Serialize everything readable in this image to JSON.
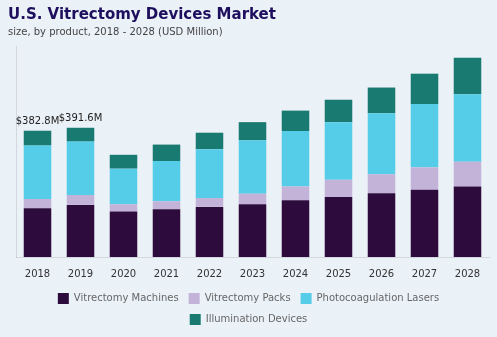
{
  "chart_data": {
    "type": "bar",
    "stacked": true,
    "title": "U.S. Vitrectomy Devices Market",
    "subtitle": "size, by product, 2018 - 2028 (USD Million)",
    "categories": [
      "2018",
      "2019",
      "2020",
      "2021",
      "2022",
      "2023",
      "2024",
      "2025",
      "2026",
      "2027",
      "2028"
    ],
    "series": [
      {
        "name": "Vitrectomy Machines",
        "color": "#2e0b3d",
        "values": [
          148,
          158,
          138,
          145,
          152,
          160,
          172,
          182,
          193,
          204,
          214
        ]
      },
      {
        "name": "Vitrectomy Packs",
        "color": "#c3b3d8",
        "values": [
          28,
          30,
          22,
          24,
          27,
          32,
          42,
          52,
          58,
          68,
          75
        ]
      },
      {
        "name": "Photocoagulation Lasers",
        "color": "#55cce8",
        "values": [
          162,
          162,
          108,
          122,
          148,
          162,
          168,
          175,
          185,
          192,
          205
        ]
      },
      {
        "name": "Illumination Devices",
        "color": "#187a70",
        "values": [
          45,
          42,
          42,
          50,
          50,
          55,
          62,
          68,
          78,
          92,
          110
        ]
      }
    ],
    "annotations": [
      {
        "category": "2018",
        "text": "$382.8M"
      },
      {
        "category": "2019",
        "text": "$391.6M"
      }
    ],
    "ylim": [
      0,
      640
    ],
    "tick_labels": "x",
    "grid": false,
    "legend": "bottom",
    "background_color": "#eaf1f7",
    "title_color": "#1e0e5e",
    "subtitle_color": "#444444"
  }
}
